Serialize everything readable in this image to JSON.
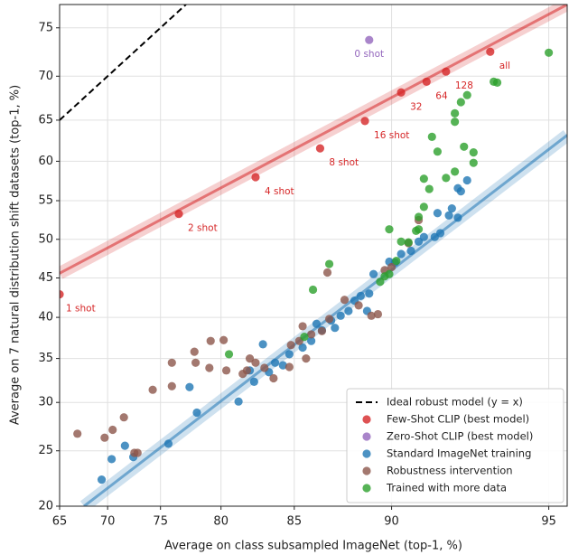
{
  "chart_data": {
    "type": "scatter",
    "x_label": "Average on class subsampled ImageNet (top-1, %)",
    "y_label": "Average on 7 natural distribution shift datasets (top-1, %)",
    "xscale": "logit",
    "yscale": "logit",
    "xlim": [
      65,
      95.4
    ],
    "ylim": [
      20,
      77.2
    ],
    "xticks": [
      65,
      70,
      75,
      80,
      85,
      90,
      95
    ],
    "yticks": [
      20,
      25,
      30,
      35,
      40,
      45,
      50,
      55,
      60,
      65,
      70,
      75
    ],
    "grid": true,
    "legend": "lower right",
    "lines": [
      {
        "name": "Ideal robust model (y = x)",
        "color": "#000000",
        "dashed": true,
        "x": [
          65,
          77.2
        ],
        "y": [
          65,
          77.2
        ]
      },
      {
        "color": "#d62728",
        "x": [
          65,
          95.4
        ],
        "y": [
          45.6,
          77.2
        ]
      },
      {
        "color": "#1f77b4",
        "x": [
          67.6,
          95.4
        ],
        "y": [
          20,
          63.2
        ]
      }
    ],
    "series": [
      {
        "name": "Few-Shot CLIP (best model)",
        "color": "#d62728",
        "x": [
          65,
          76.6,
          82.5,
          86.5,
          88.8,
          90.4,
          91.4,
          92.1,
          93.5
        ],
        "values": [
          42.9,
          53.3,
          58.0,
          61.6,
          64.9,
          68.2,
          69.4,
          70.5,
          72.6
        ],
        "labels": [
          "1 shot",
          "2 shot",
          "4 shot",
          "8 shot",
          "16 shot",
          "32",
          "64",
          "128",
          "all"
        ]
      },
      {
        "name": "Zero-Shot CLIP (best model)",
        "color": "#9467bd",
        "x": [
          89.0
        ],
        "values": [
          73.8
        ],
        "labels": [
          "0 shot"
        ]
      },
      {
        "name": "Standard ImageNet training",
        "color": "#1f77b4",
        "x": [
          69.4,
          70.4,
          71.7,
          72.5,
          75.7,
          77.5,
          78.1,
          81.3,
          82.1,
          82.4,
          83.0,
          83.4,
          83.8,
          84.3,
          84.7,
          85.5,
          86.0,
          86.3,
          86.6,
          87.1,
          87.3,
          87.6,
          88.0,
          88.3,
          88.6,
          88.9,
          89.0,
          89.2,
          89.9,
          90.14,
          90.4,
          90.8,
          91.1,
          91.3,
          91.7,
          91.9,
          91.8,
          92.2,
          92.3,
          92.5,
          92.6,
          92.8,
          92.5
        ],
        "values": [
          22.3,
          24.2,
          25.5,
          24.4,
          25.7,
          31.7,
          28.9,
          30.1,
          33.6,
          32.3,
          36.7,
          33.4,
          34.5,
          34.2,
          35.5,
          36.3,
          37.1,
          39.2,
          38.4,
          39.6,
          38.7,
          40.2,
          40.8,
          42.1,
          42.7,
          40.8,
          43.0,
          45.5,
          47.1,
          47.0,
          48.1,
          48.5,
          49.7,
          50.3,
          50.3,
          50.8,
          53.4,
          53.1,
          54.0,
          56.6,
          56.2,
          57.6,
          52.8
        ]
      },
      {
        "name": "Robustness intervention",
        "color": "#8c564b",
        "x": [
          66.9,
          69.7,
          70.5,
          71.6,
          72.6,
          72.9,
          74.3,
          76.0,
          76.0,
          77.9,
          78.0,
          79.1,
          79.2,
          80.2,
          80.4,
          81.6,
          81.9,
          82.1,
          82.5,
          83.1,
          83.7,
          84.7,
          84.8,
          85.3,
          85.5,
          85.7,
          86.0,
          86.6,
          87.0,
          87.8,
          88.5,
          89.1,
          89.4,
          89.7,
          90.0,
          90.7,
          91.1,
          86.9
        ],
        "values": [
          26.7,
          26.3,
          27.1,
          28.4,
          24.8,
          24.8,
          31.4,
          34.5,
          31.8,
          35.8,
          34.5,
          33.9,
          37.1,
          37.2,
          33.6,
          33.2,
          33.6,
          35.0,
          34.5,
          33.9,
          32.7,
          34.0,
          36.6,
          37.1,
          38.9,
          35.0,
          37.9,
          38.3,
          39.8,
          42.2,
          41.5,
          40.2,
          40.4,
          46.0,
          46.4,
          49.5,
          52.5,
          45.7
        ]
      },
      {
        "name": "Trained with more data",
        "color": "#2ca02c",
        "x": [
          80.6,
          86.1,
          87.0,
          85.6,
          89.5,
          89.7,
          89.9,
          90.2,
          90.4,
          90.7,
          91.0,
          91.1,
          91.1,
          91.3,
          91.3,
          91.5,
          91.6,
          91.8,
          92.1,
          92.4,
          92.4,
          92.4,
          92.6,
          92.8,
          92.7,
          93.0,
          93.0,
          93.6,
          93.7,
          95.0,
          89.9
        ],
        "values": [
          35.5,
          43.5,
          46.8,
          37.6,
          44.5,
          45.2,
          45.5,
          47.2,
          49.7,
          49.6,
          51.1,
          52.9,
          51.3,
          54.2,
          57.8,
          56.5,
          63.0,
          61.2,
          57.9,
          65.8,
          64.8,
          58.7,
          67.1,
          67.9,
          61.8,
          61.1,
          59.8,
          69.4,
          69.3,
          72.5,
          51.3
        ]
      }
    ]
  }
}
